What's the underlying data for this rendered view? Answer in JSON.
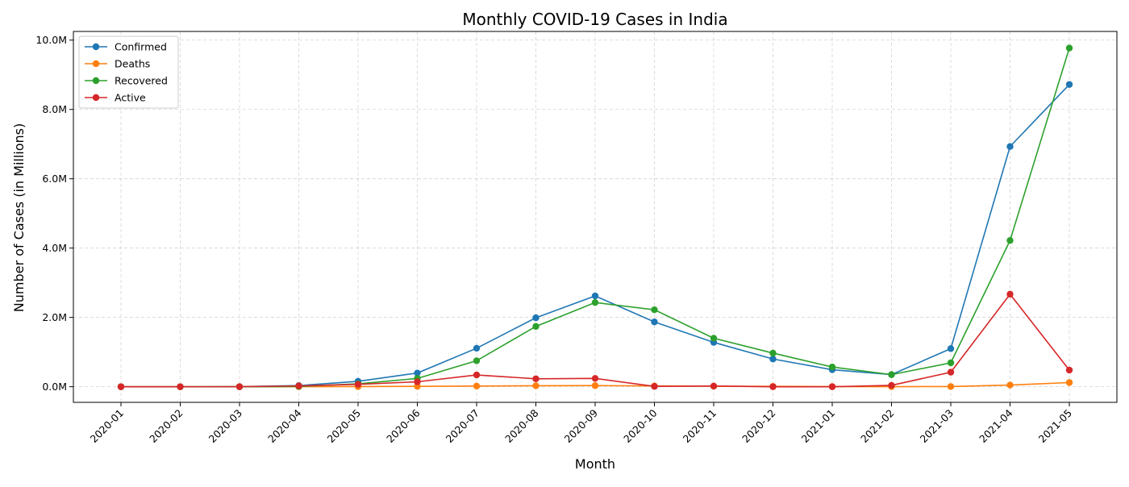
{
  "chart_data": {
    "type": "line",
    "title": "Monthly COVID-19 Cases in India",
    "xlabel": "Month",
    "ylabel": "Number of Cases (in Millions)",
    "categories": [
      "2020-01",
      "2020-02",
      "2020-03",
      "2020-04",
      "2020-05",
      "2020-06",
      "2020-07",
      "2020-08",
      "2020-09",
      "2020-10",
      "2020-11",
      "2020-12",
      "2021-01",
      "2021-02",
      "2021-03",
      "2021-04",
      "2021-05"
    ],
    "ylim": [
      -0.45,
      10.25
    ],
    "yticks": [
      0,
      2,
      4,
      6,
      8,
      10
    ],
    "ytick_labels": [
      "0.0M",
      "2.0M",
      "4.0M",
      "6.0M",
      "8.0M",
      "10.0M"
    ],
    "grid": true,
    "legend_position": "top-left",
    "series": [
      {
        "name": "Confirmed",
        "color": "#1f77b4",
        "values": [
          0.0,
          0.0,
          0.001,
          0.033,
          0.157,
          0.395,
          1.11,
          1.99,
          2.62,
          1.87,
          1.28,
          0.8,
          0.49,
          0.35,
          1.1,
          6.93,
          8.72
        ]
      },
      {
        "name": "Deaths",
        "color": "#ff7f0e",
        "values": [
          0.0,
          0.0,
          0.0,
          0.001,
          0.004,
          0.012,
          0.019,
          0.028,
          0.033,
          0.023,
          0.015,
          0.011,
          0.005,
          0.003,
          0.006,
          0.049,
          0.12
        ]
      },
      {
        "name": "Recovered",
        "color": "#2ca02c",
        "values": [
          0.0,
          0.0,
          0.0,
          0.008,
          0.083,
          0.24,
          0.75,
          1.74,
          2.43,
          2.22,
          1.4,
          0.97,
          0.57,
          0.35,
          0.69,
          4.22,
          9.77
        ]
      },
      {
        "name": "Active",
        "color": "#d62728",
        "values": [
          0.0,
          0.0,
          0.001,
          0.024,
          0.07,
          0.143,
          0.34,
          0.23,
          0.24,
          0.01,
          0.02,
          0.0,
          0.0,
          0.04,
          0.42,
          2.67,
          0.48
        ]
      }
    ]
  }
}
